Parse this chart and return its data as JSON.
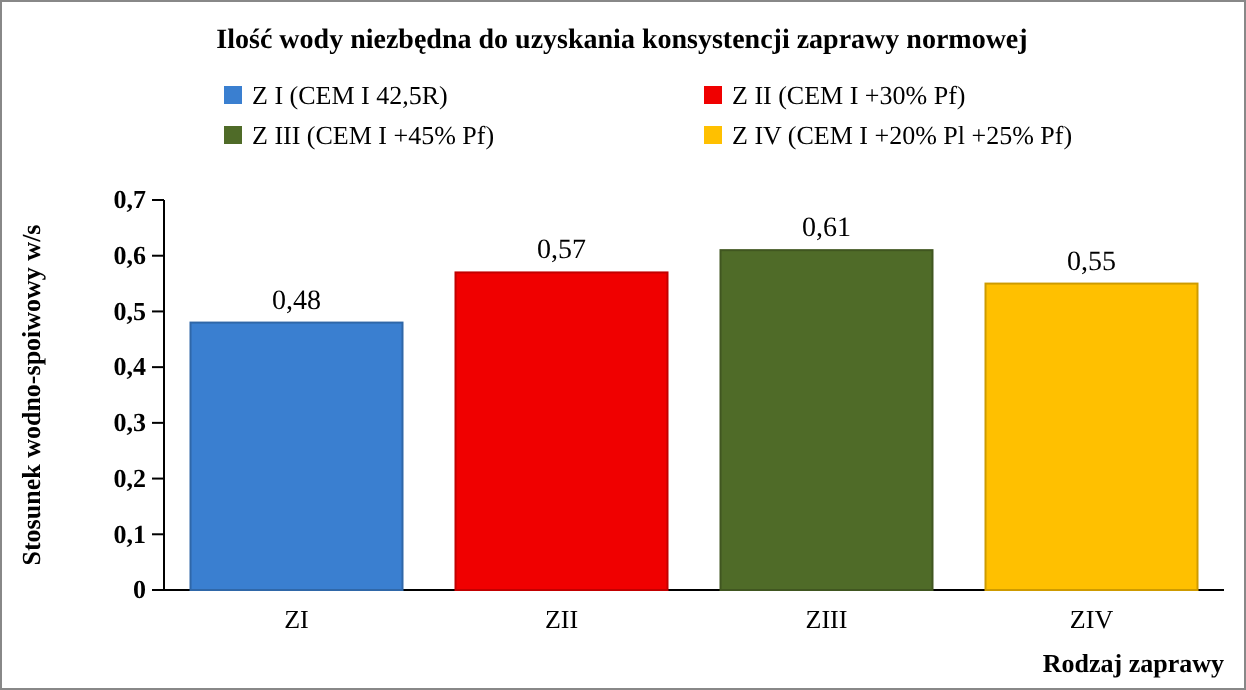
{
  "chart_data": {
    "type": "bar",
    "title": "Ilość wody niezbędna do uzyskania konsystencji zaprawy normowej",
    "xlabel": "Rodzaj zaprawy",
    "ylabel": "Stosunek wodno-spoiwowy w/s",
    "categories": [
      "ZI",
      "ZII",
      "ZIII",
      "ZIV"
    ],
    "stacked": true,
    "legend": "top",
    "series": [
      {
        "name": "Z I (CEM I 42,5R)",
        "color": "#3a7fd0",
        "values": [
          0.48,
          null,
          null,
          null
        ],
        "value_labels": [
          "0,48",
          null,
          null,
          null
        ]
      },
      {
        "name": "Z II (CEM I +30% Pf)",
        "color": "#f00000",
        "values": [
          null,
          0.57,
          null,
          null
        ],
        "value_labels": [
          null,
          "0,57",
          null,
          null
        ]
      },
      {
        "name": "Z III (CEM I +45% Pf)",
        "color": "#4f6b28",
        "values": [
          null,
          null,
          0.61,
          null
        ],
        "value_labels": [
          null,
          null,
          "0,61",
          null
        ]
      },
      {
        "name": "Z IV (CEM I +20% Pl +25% Pf)",
        "color": "#ffc000",
        "values": [
          null,
          null,
          null,
          0.55
        ],
        "value_labels": [
          null,
          null,
          null,
          "0,55"
        ]
      }
    ],
    "ylim": [
      0,
      0.7
    ],
    "yticks": [
      0,
      {
        "value": 0.1,
        "label": "0,1"
      },
      {
        "value": 0.2,
        "label": "0,2"
      },
      {
        "value": 0.3,
        "label": "0,3"
      },
      {
        "value": 0.4,
        "label": "0,4"
      },
      {
        "value": 0.5,
        "label": "0,5"
      },
      {
        "value": 0.6,
        "label": "0,6"
      },
      {
        "value": 0.7,
        "label": "0,7"
      }
    ]
  }
}
